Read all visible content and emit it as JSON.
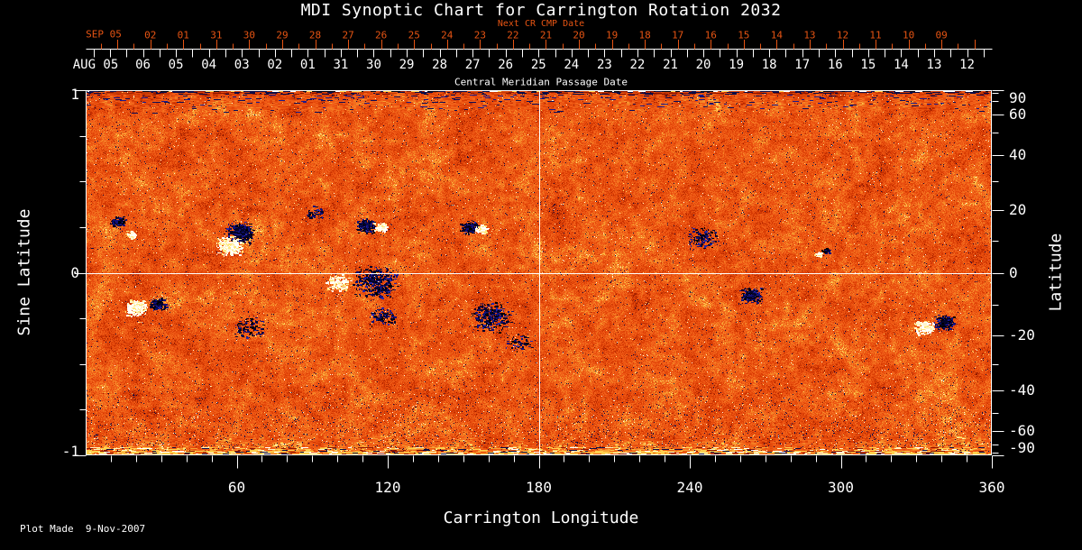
{
  "title": "MDI Synoptic Chart for Carrington Rotation 2032",
  "footer": {
    "plot_made": "Plot Made  9-Nov-2007"
  },
  "colors": {
    "background": "#000000",
    "foreground": "#ffffff",
    "next_cr_accent": "#e65413",
    "quiet_sun": "#e84d0d",
    "negative_polarity": "#10107a",
    "positive_polarity": "#ffffff"
  },
  "chart_data": {
    "type": "heatmap",
    "title": "MDI Synoptic Chart for Carrington Rotation 2032",
    "xlabel": "Carrington Longitude",
    "ylabel_left": "Sine Latitude",
    "ylabel_right": "Latitude",
    "xlim": [
      0,
      360
    ],
    "ylim_sine": [
      -1,
      1
    ],
    "grid": "off",
    "x_major_ticks": [
      60,
      120,
      180,
      240,
      300,
      360
    ],
    "x_minor_step_deg": 10,
    "sine_labeled_ticks": [
      "1",
      "0",
      "-1"
    ],
    "sine_labeled_values": [
      1,
      0,
      -1
    ],
    "sine_minor_values": [
      0.75,
      0.5,
      0.25,
      -0.25,
      -0.5,
      -0.75
    ],
    "latitude_tick_values": [
      90,
      80,
      70,
      60,
      50,
      40,
      30,
      20,
      10,
      0,
      -10,
      -20,
      -30,
      -40,
      -50,
      -60,
      -70,
      -80,
      -90
    ],
    "latitude_labeled_values": [
      90,
      60,
      40,
      20,
      0,
      -20,
      -40,
      -60,
      -90
    ],
    "top_axis": {
      "label": "Next CR CMP Date",
      "month_label": "SEP 05",
      "day_labels": [
        "02",
        "01",
        "31",
        "30",
        "29",
        "28",
        "27",
        "26",
        "25",
        "24",
        "23",
        "22",
        "21",
        "20",
        "19",
        "18",
        "17",
        "16",
        "15",
        "14",
        "13",
        "12",
        "11",
        "10",
        "09"
      ]
    },
    "cmp_axis": {
      "label": "Central Meridian Passage Date",
      "month_label": "AUG 05",
      "day_labels": [
        "06",
        "05",
        "04",
        "03",
        "02",
        "01",
        "31",
        "30",
        "29",
        "28",
        "27",
        "26",
        "25",
        "24",
        "23",
        "22",
        "21",
        "20",
        "19",
        "18",
        "17",
        "16",
        "15",
        "14",
        "13",
        "12"
      ]
    },
    "reference_lines": {
      "horizontal_sine_latitude": 0,
      "vertical_longitude": 180
    },
    "active_regions": [
      {
        "lon": 12.5,
        "sine_lat": 0.28,
        "size": 7,
        "polarity": "neg",
        "core": true
      },
      {
        "lon": 18,
        "sine_lat": 0.21,
        "size": 5,
        "polarity": "pos",
        "core": true
      },
      {
        "lon": 61,
        "sine_lat": 0.22,
        "size": 13,
        "polarity": "neg",
        "core": true
      },
      {
        "lon": 57,
        "sine_lat": 0.15,
        "size": 12,
        "polarity": "pos",
        "core": true
      },
      {
        "lon": 20,
        "sine_lat": -0.19,
        "size": 10,
        "polarity": "pos",
        "core": true
      },
      {
        "lon": 28.5,
        "sine_lat": -0.17,
        "size": 8,
        "polarity": "neg",
        "core": true
      },
      {
        "lon": 111,
        "sine_lat": 0.26,
        "size": 9,
        "polarity": "neg",
        "core": true
      },
      {
        "lon": 117,
        "sine_lat": 0.25,
        "size": 6,
        "polarity": "pos",
        "core": true
      },
      {
        "lon": 115,
        "sine_lat": -0.05,
        "size": 20,
        "polarity": "neg",
        "density": 1.1
      },
      {
        "lon": 100,
        "sine_lat": -0.05,
        "size": 11,
        "polarity": "pos",
        "density": 1.6
      },
      {
        "lon": 152,
        "sine_lat": 0.25,
        "size": 8,
        "polarity": "neg",
        "core": true
      },
      {
        "lon": 157,
        "sine_lat": 0.24,
        "size": 6,
        "polarity": "pos",
        "core": true
      },
      {
        "lon": 161,
        "sine_lat": -0.24,
        "size": 18,
        "polarity": "neg",
        "density": 1.0
      },
      {
        "lon": 118,
        "sine_lat": -0.24,
        "size": 12,
        "polarity": "neg",
        "density": 0.8
      },
      {
        "lon": 245,
        "sine_lat": 0.19,
        "size": 14,
        "polarity": "neg",
        "density": 0.7
      },
      {
        "lon": 264,
        "sine_lat": -0.12,
        "size": 10,
        "polarity": "neg",
        "core": true
      },
      {
        "lon": 291,
        "sine_lat": 0.1,
        "size": 4,
        "polarity": "pos",
        "core": true
      },
      {
        "lon": 294,
        "sine_lat": 0.12,
        "size": 4,
        "polarity": "neg"
      },
      {
        "lon": 333,
        "sine_lat": -0.3,
        "size": 9,
        "polarity": "pos",
        "core": true
      },
      {
        "lon": 341,
        "sine_lat": -0.27,
        "size": 9,
        "polarity": "neg",
        "core": true
      },
      {
        "lon": 91,
        "sine_lat": 0.33,
        "size": 8,
        "polarity": "neg",
        "density": 1.0
      },
      {
        "lon": 65,
        "sine_lat": -0.3,
        "size": 14,
        "polarity": "neg",
        "density": 0.55
      },
      {
        "lon": 172,
        "sine_lat": -0.38,
        "size": 12,
        "polarity": "neg",
        "density": 0.5
      }
    ]
  }
}
